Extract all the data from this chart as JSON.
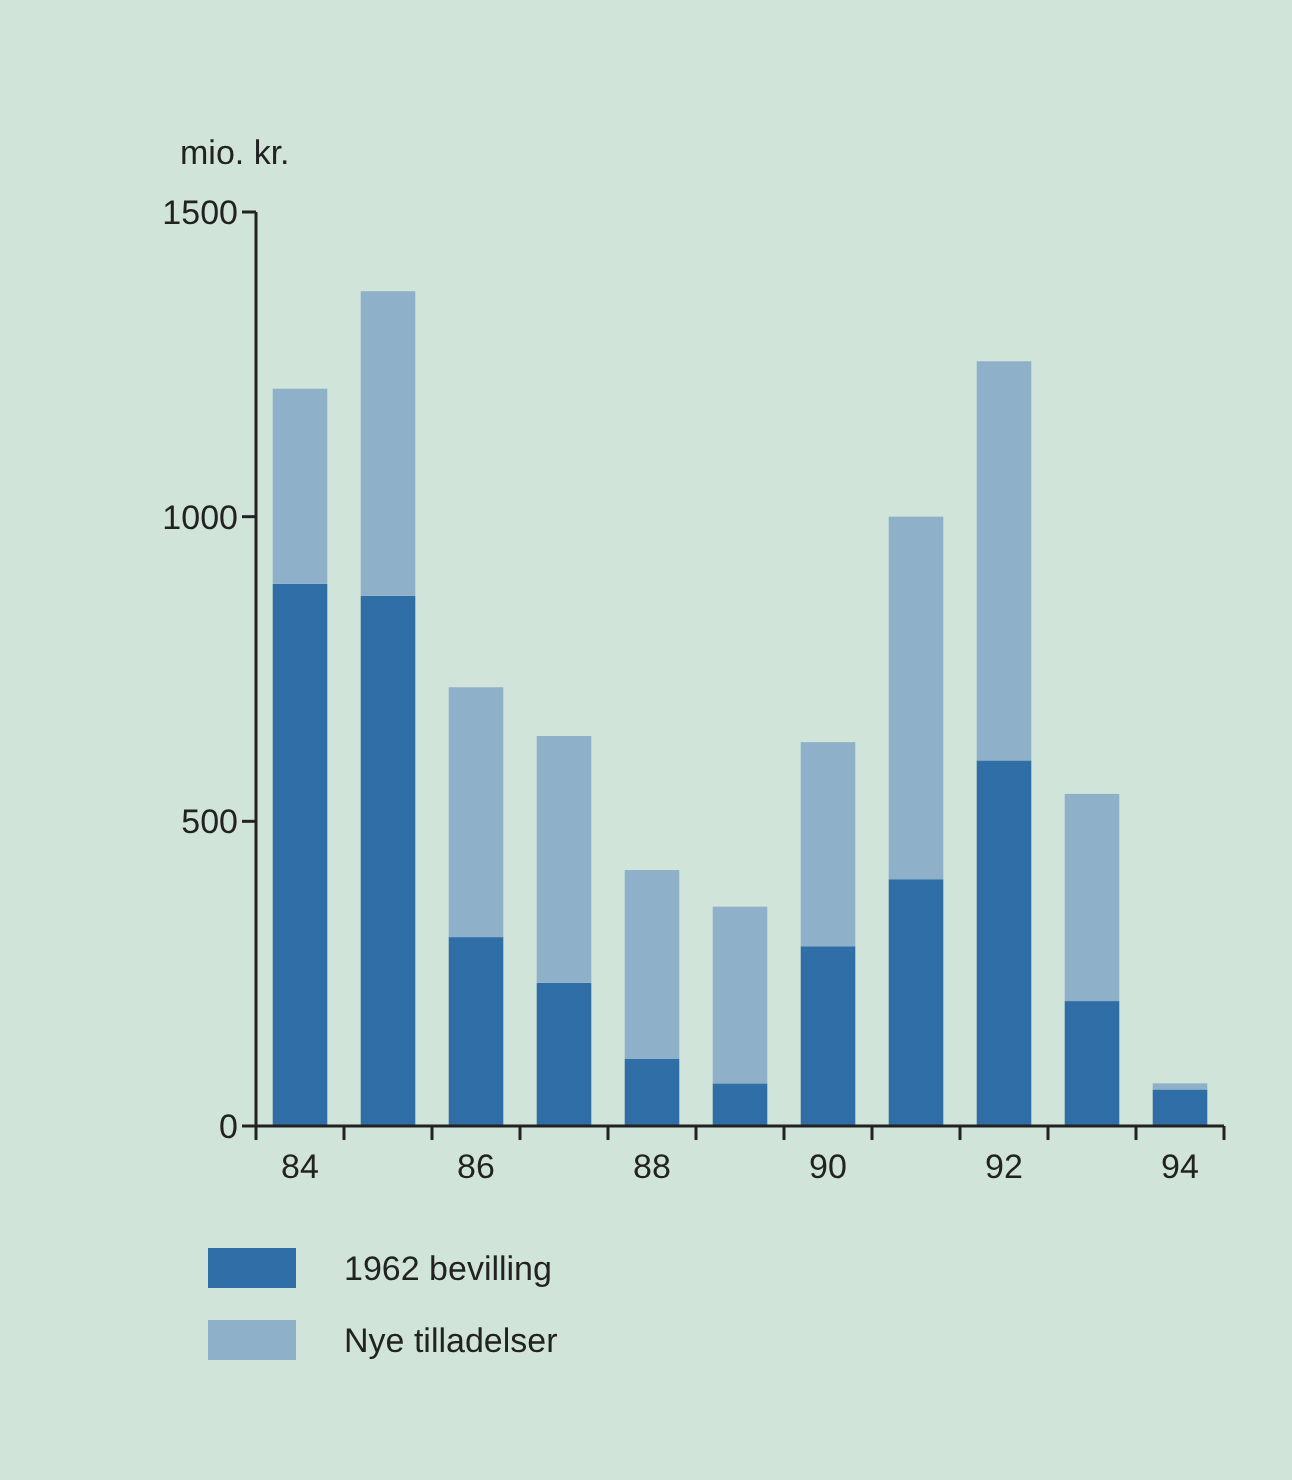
{
  "chart_data": {
    "type": "bar",
    "ylabel": "mio. kr.",
    "categories": [
      "84",
      null,
      "86",
      null,
      "88",
      null,
      "90",
      null,
      "92",
      null,
      "94"
    ],
    "stacked": true,
    "series": [
      {
        "name": "1962 bevilling",
        "color": "#2f6ea6",
        "values": [
          890,
          870,
          310,
          235,
          110,
          70,
          295,
          405,
          600,
          205,
          60
        ]
      },
      {
        "name": "Nye tilladelser",
        "color": "#8eb0c9",
        "values": [
          320,
          500,
          410,
          405,
          310,
          290,
          335,
          595,
          655,
          340,
          10
        ]
      }
    ],
    "ylim": [
      0,
      1500
    ],
    "yticks": [
      0,
      500,
      1000,
      1500
    ],
    "grid": false,
    "legend": "bottom left"
  }
}
